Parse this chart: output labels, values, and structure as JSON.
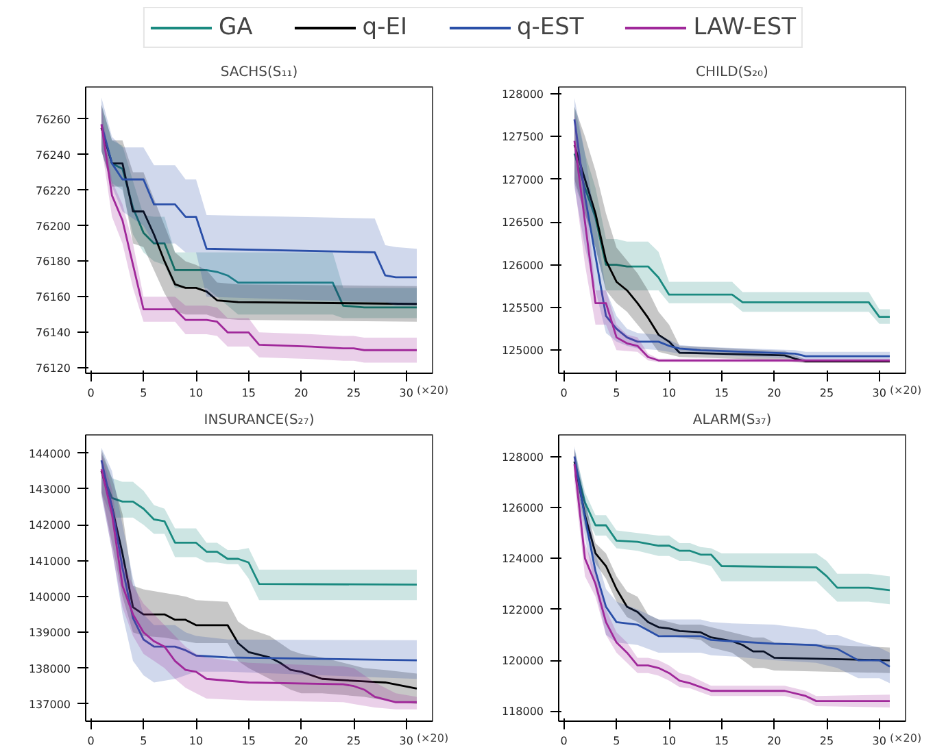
{
  "chart_data": [
    {
      "type": "line",
      "title": "SACHS(S₁₁)",
      "xlabel": "(×20)",
      "xlim": [
        -0.5,
        32.5
      ],
      "xticks": [
        0,
        5,
        10,
        15,
        20,
        25,
        30
      ],
      "ylim": [
        76117,
        76278
      ],
      "yticks": [
        76120,
        76140,
        76160,
        76180,
        76200,
        76220,
        76240,
        76260
      ],
      "grid": false,
      "legend": "top",
      "series": [
        {
          "name": "GA",
          "color": "#1a8a80",
          "x": [
            1,
            2,
            3,
            4,
            5,
            6,
            7,
            8,
            11,
            12,
            13,
            14,
            23,
            24,
            26,
            31
          ],
          "values": [
            76255,
            76235,
            76232,
            76210,
            76196,
            76190,
            76190,
            76175,
            76175,
            76174,
            76172,
            76168,
            76168,
            76155,
            76154,
            76154
          ],
          "lower": [
            76242,
            76224,
            76220,
            76195,
            76185,
            76180,
            76178,
            76165,
            76165,
            76160,
            76155,
            76150,
            76150,
            76148,
            76148,
            76148
          ],
          "upper": [
            76268,
            76248,
            76245,
            76225,
            76206,
            76205,
            76205,
            76185,
            76185,
            76185,
            76185,
            76185,
            76185,
            76165,
            76165,
            76165
          ]
        },
        {
          "name": "q-EI",
          "color": "#000000",
          "x": [
            1,
            2,
            3,
            4,
            5,
            6,
            7,
            8,
            9,
            10,
            11,
            12,
            14,
            31
          ],
          "values": [
            76255,
            76235,
            76235,
            76208,
            76208,
            76195,
            76180,
            76167,
            76165,
            76165,
            76163,
            76158,
            76157,
            76156
          ],
          "lower": [
            76242,
            76222,
            76222,
            76190,
            76188,
            76175,
            76162,
            76152,
            76150,
            76150,
            76150,
            76148,
            76147,
            76146
          ],
          "upper": [
            76268,
            76248,
            76248,
            76230,
            76230,
            76215,
            76200,
            76185,
            76180,
            76178,
            76175,
            76168,
            76167,
            76166
          ]
        },
        {
          "name": "q-EST",
          "color": "#2a4fa8",
          "x": [
            1,
            2,
            3,
            5,
            6,
            8,
            9,
            10,
            11,
            27,
            28,
            29,
            31
          ],
          "values": [
            76257,
            76235,
            76226,
            76226,
            76212,
            76212,
            76205,
            76205,
            76187,
            76185,
            76172,
            76171,
            76171
          ],
          "lower": [
            76242,
            76222,
            76208,
            76200,
            76190,
            76190,
            76185,
            76185,
            76160,
            76157,
            76157,
            76155,
            76155
          ],
          "upper": [
            76272,
            76250,
            76244,
            76244,
            76234,
            76234,
            76226,
            76226,
            76206,
            76204,
            76189,
            76188,
            76187
          ]
        },
        {
          "name": "LAW-EST",
          "color": "#a0289a",
          "x": [
            1,
            2,
            3,
            4,
            5,
            8,
            9,
            11,
            12,
            13,
            15,
            16,
            21,
            24,
            25,
            26,
            31
          ],
          "values": [
            76257,
            76217,
            76203,
            76178,
            76153,
            76153,
            76147,
            76147,
            76146,
            76140,
            76140,
            76133,
            76132,
            76131,
            76131,
            76130,
            76130
          ],
          "lower": [
            76245,
            76205,
            76190,
            76165,
            76146,
            76146,
            76139,
            76139,
            76138,
            76132,
            76132,
            76126,
            76125,
            76124,
            76124,
            76123,
            76123
          ],
          "upper": [
            76268,
            76225,
            76212,
            76190,
            76160,
            76160,
            76155,
            76155,
            76154,
            76148,
            76148,
            76140,
            76139,
            76138,
            76138,
            76137,
            76137
          ]
        }
      ]
    },
    {
      "type": "line",
      "title": "CHILD(S₂₀)",
      "xlabel": "(×20)",
      "xlim": [
        -0.5,
        32.5
      ],
      "xticks": [
        0,
        5,
        10,
        15,
        20,
        25,
        30
      ],
      "ylim": [
        124730,
        128080
      ],
      "yticks": [
        125000,
        125500,
        126000,
        126500,
        127000,
        127500,
        128000
      ],
      "grid": false,
      "series": [
        {
          "color": "#1a8a80",
          "x": [
            1,
            2,
            3,
            4,
            5,
            6,
            8,
            9,
            10,
            16,
            17,
            29,
            30,
            31
          ],
          "values": [
            127300,
            126900,
            126550,
            126000,
            126000,
            125980,
            125980,
            125850,
            125650,
            125650,
            125560,
            125560,
            125390,
            125390
          ],
          "lower": [
            126950,
            126600,
            126200,
            125700,
            125700,
            125700,
            125700,
            125700,
            125550,
            125550,
            125450,
            125450,
            125310,
            125310
          ],
          "upper": [
            127850,
            127300,
            126900,
            126300,
            126300,
            126270,
            126270,
            126150,
            125800,
            125800,
            125680,
            125680,
            125480,
            125480
          ]
        },
        {
          "color": "#000000",
          "x": [
            1,
            2,
            3,
            4,
            5,
            6,
            7,
            8,
            9,
            10,
            11,
            21,
            22,
            23,
            31
          ],
          "values": [
            127400,
            127000,
            126600,
            126050,
            125800,
            125700,
            125550,
            125380,
            125180,
            125100,
            124970,
            124940,
            124900,
            124870,
            124870
          ],
          "lower": [
            127000,
            126600,
            126200,
            125700,
            125550,
            125450,
            125300,
            125150,
            124980,
            124950,
            124920,
            124880,
            124860,
            124850,
            124850
          ],
          "upper": [
            127850,
            127500,
            127100,
            126600,
            126200,
            126050,
            125900,
            125700,
            125450,
            125300,
            125050,
            124990,
            124940,
            124890,
            124890
          ]
        },
        {
          "color": "#2a4fa8",
          "x": [
            1,
            2,
            3,
            4,
            5,
            6,
            7,
            9,
            10,
            11,
            13,
            22,
            23,
            31
          ],
          "values": [
            127700,
            126800,
            126100,
            125400,
            125250,
            125150,
            125100,
            125100,
            125050,
            125020,
            125000,
            124960,
            124930,
            124930
          ],
          "lower": [
            126900,
            126200,
            125700,
            125200,
            125100,
            125050,
            125020,
            125000,
            124980,
            124960,
            124950,
            124900,
            124880,
            124880
          ],
          "upper": [
            127950,
            127300,
            126500,
            125700,
            125400,
            125250,
            125200,
            125180,
            125120,
            125060,
            125040,
            125000,
            124980,
            124980
          ]
        },
        {
          "color": "#a0289a",
          "x": [
            1,
            2,
            3,
            4,
            5,
            6,
            7,
            8,
            9,
            31
          ],
          "values": [
            127450,
            126500,
            125550,
            125550,
            125150,
            125080,
            125050,
            124920,
            124880,
            124880
          ],
          "lower": [
            126950,
            126000,
            125300,
            125300,
            125000,
            124990,
            124980,
            124880,
            124860,
            124860
          ],
          "upper": [
            127800,
            126900,
            125700,
            125700,
            125300,
            125180,
            125150,
            124960,
            124900,
            124900
          ]
        }
      ]
    },
    {
      "type": "line",
      "title": "INSURANCE(S₂₇)",
      "xlabel": "(×20)",
      "xlim": [
        -0.5,
        32.5
      ],
      "xticks": [
        0,
        5,
        10,
        15,
        20,
        25,
        30
      ],
      "ylim": [
        136520,
        144510
      ],
      "yticks": [
        137000,
        138000,
        139000,
        140000,
        141000,
        142000,
        143000,
        144000
      ],
      "grid": false,
      "series": [
        {
          "color": "#1a8a80",
          "x": [
            1,
            2,
            3,
            4,
            5,
            6,
            7,
            8,
            10,
            11,
            12,
            13,
            14,
            15,
            16,
            31
          ],
          "values": [
            143500,
            142750,
            142650,
            142650,
            142450,
            142150,
            142100,
            141500,
            141500,
            141250,
            141250,
            141050,
            141050,
            140950,
            140350,
            140330
          ],
          "lower": [
            142900,
            142200,
            142200,
            142200,
            142000,
            141750,
            141750,
            141100,
            141100,
            140950,
            140950,
            140900,
            140900,
            140500,
            139900,
            139900
          ],
          "upper": [
            144000,
            143300,
            143200,
            143200,
            142950,
            142550,
            142450,
            141900,
            141900,
            141500,
            141500,
            141300,
            141300,
            141350,
            140750,
            140750
          ]
        },
        {
          "color": "#000000",
          "x": [
            1,
            2,
            3,
            4,
            5,
            7,
            8,
            9,
            10,
            13,
            14,
            15,
            17,
            18,
            19,
            20,
            22,
            26,
            28,
            31
          ],
          "values": [
            143500,
            142500,
            141200,
            139700,
            139500,
            139500,
            139350,
            139350,
            139200,
            139200,
            138700,
            138450,
            138300,
            138150,
            137950,
            137900,
            137700,
            137630,
            137600,
            137430
          ],
          "lower": [
            142900,
            141500,
            140000,
            139000,
            138900,
            138850,
            138800,
            138750,
            138700,
            138700,
            138200,
            138000,
            137700,
            137550,
            137400,
            137300,
            137300,
            137200,
            137100,
            137000
          ],
          "upper": [
            144100,
            143300,
            142300,
            140300,
            140200,
            140100,
            140050,
            140000,
            139900,
            139850,
            139300,
            139100,
            138900,
            138700,
            138500,
            138400,
            138300,
            138000,
            137950,
            137850
          ]
        },
        {
          "color": "#2a4fa8",
          "x": [
            1,
            2,
            3,
            4,
            5,
            6,
            8,
            9,
            10,
            13,
            31
          ],
          "values": [
            143800,
            142500,
            140800,
            139400,
            138800,
            138600,
            138600,
            138500,
            138350,
            138300,
            138220
          ],
          "lower": [
            142800,
            141300,
            139500,
            138200,
            137800,
            137600,
            137700,
            137800,
            137900,
            137900,
            137700
          ],
          "upper": [
            144150,
            143500,
            142000,
            140500,
            139500,
            139200,
            139200,
            139000,
            138900,
            138800,
            138780
          ]
        },
        {
          "color": "#a0289a",
          "x": [
            1,
            2,
            3,
            4,
            5,
            6,
            7,
            8,
            9,
            10,
            11,
            15,
            24,
            25,
            26,
            27,
            29,
            31
          ],
          "values": [
            143550,
            142300,
            140300,
            139500,
            139000,
            138750,
            138600,
            138200,
            137950,
            137900,
            137700,
            137600,
            137550,
            137500,
            137400,
            137200,
            137050,
            137050
          ],
          "lower": [
            142900,
            141300,
            139700,
            138900,
            138400,
            138200,
            138000,
            137700,
            137450,
            137300,
            137150,
            137100,
            137050,
            137000,
            136950,
            136900,
            136850,
            136850
          ],
          "upper": [
            144000,
            143000,
            141000,
            140300,
            139800,
            139500,
            139200,
            138900,
            138600,
            138400,
            138300,
            138150,
            138050,
            138000,
            137800,
            137600,
            137300,
            137200
          ]
        }
      ]
    },
    {
      "type": "line",
      "title": "ALARM(S₃₇)",
      "xlabel": "(×20)",
      "xlim": [
        -0.5,
        32.5
      ],
      "xticks": [
        0,
        5,
        10,
        15,
        20,
        25,
        30
      ],
      "ylim": [
        117610,
        128850
      ],
      "yticks": [
        118000,
        120000,
        122000,
        124000,
        126000,
        128000
      ],
      "grid": false,
      "series": [
        {
          "color": "#1a8a80",
          "x": [
            1,
            2,
            3,
            4,
            5,
            7,
            9,
            10,
            11,
            12,
            13,
            14,
            15,
            24,
            25,
            26,
            29,
            31
          ],
          "values": [
            127800,
            126200,
            125300,
            125300,
            124700,
            124650,
            124500,
            124500,
            124300,
            124300,
            124150,
            124150,
            123700,
            123650,
            123300,
            122850,
            122850,
            122750
          ],
          "lower": [
            127200,
            125800,
            124900,
            124900,
            124400,
            124300,
            124100,
            124100,
            123900,
            123900,
            123800,
            123700,
            123100,
            123100,
            122700,
            122300,
            122300,
            122200
          ],
          "upper": [
            128300,
            126600,
            125700,
            125700,
            125100,
            125000,
            124900,
            124900,
            124600,
            124600,
            124450,
            124400,
            124200,
            124200,
            123900,
            123400,
            123400,
            123300
          ]
        },
        {
          "color": "#000000",
          "x": [
            1,
            2,
            3,
            4,
            5,
            6,
            7,
            8,
            9,
            10,
            11,
            13,
            14,
            16,
            17,
            18,
            19,
            20,
            31
          ],
          "values": [
            127800,
            125700,
            124200,
            123700,
            122800,
            122100,
            121900,
            121500,
            121300,
            121250,
            121150,
            121100,
            120900,
            120750,
            120600,
            120350,
            120350,
            120100,
            120000
          ],
          "lower": [
            127300,
            125200,
            123800,
            123200,
            122300,
            121700,
            121500,
            121200,
            121000,
            120950,
            120900,
            120800,
            120500,
            120300,
            120000,
            119700,
            119700,
            119600,
            119500
          ],
          "upper": [
            128300,
            126200,
            124600,
            124200,
            123300,
            122700,
            122500,
            121800,
            121600,
            121500,
            121400,
            121400,
            121300,
            121100,
            121000,
            120900,
            120900,
            120700,
            120500
          ]
        },
        {
          "color": "#2a4fa8",
          "x": [
            1,
            2,
            3,
            4,
            5,
            7,
            9,
            13,
            14,
            16,
            20,
            24,
            25,
            26,
            28,
            30,
            31
          ],
          "values": [
            128000,
            125600,
            123500,
            122100,
            121500,
            121400,
            120950,
            120950,
            120800,
            120750,
            120650,
            120600,
            120500,
            120450,
            120000,
            120000,
            119750
          ],
          "lower": [
            127300,
            124800,
            122800,
            121000,
            120700,
            120600,
            120300,
            120300,
            120200,
            120150,
            120000,
            119900,
            119800,
            119700,
            119300,
            119300,
            119100
          ],
          "upper": [
            128400,
            126400,
            124200,
            122800,
            122300,
            122000,
            121600,
            121600,
            121500,
            121450,
            121400,
            121200,
            121000,
            121000,
            120700,
            120500,
            120300
          ]
        },
        {
          "color": "#a0289a",
          "x": [
            1,
            2,
            3,
            4,
            5,
            6,
            7,
            8,
            9,
            10,
            11,
            12,
            14,
            21,
            23,
            24,
            31
          ],
          "values": [
            127700,
            124000,
            123000,
            121500,
            120700,
            120300,
            119800,
            119800,
            119700,
            119500,
            119200,
            119100,
            118800,
            118800,
            118600,
            118400,
            118400
          ],
          "lower": [
            127000,
            123300,
            122500,
            121000,
            120300,
            119900,
            119500,
            119500,
            119400,
            119200,
            118950,
            118900,
            118600,
            118600,
            118400,
            118200,
            118150
          ],
          "upper": [
            128300,
            124600,
            123500,
            122000,
            121100,
            120700,
            120100,
            120100,
            120000,
            119800,
            119500,
            119400,
            119000,
            119000,
            118800,
            118600,
            118650
          ]
        }
      ]
    }
  ]
}
